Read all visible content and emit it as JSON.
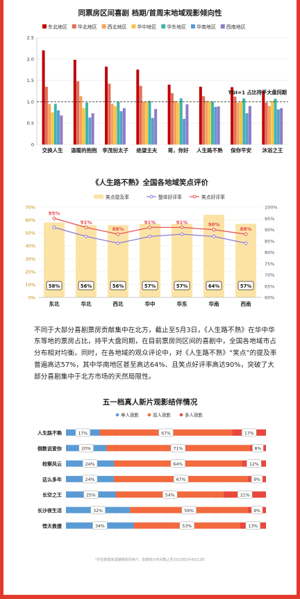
{
  "chart_data": [
    {
      "type": "bar",
      "title": "同票房区间喜剧 档期/首周末地域观影倾向性",
      "legend_position": "top",
      "series_names": [
        "东北地区",
        "华北地区",
        "西北地区",
        "华中地区",
        "华东地区",
        "华南地区",
        "西南地区"
      ],
      "colors": [
        "#c00000",
        "#e26d5a",
        "#f4a259",
        "#f7c548",
        "#3fb6a8",
        "#5b9bd5",
        "#8e7cc3"
      ],
      "categories": [
        "交换人生",
        "温暖的抱抱",
        "李茂扮太子",
        "绝望主夫",
        "哥，你好",
        "人生路不熟",
        "保你平安",
        "沐浴之王"
      ],
      "values": [
        [
          2.2,
          1.35,
          0.95,
          0.75,
          0.95,
          0.8,
          0.68
        ],
        [
          1.98,
          1.48,
          1.13,
          0.85,
          0.98,
          0.63,
          0.73
        ],
        [
          1.82,
          1.42,
          0.95,
          0.9,
          1.0,
          0.78,
          0.85
        ],
        [
          1.75,
          1.37,
          1.0,
          1.0,
          1.02,
          0.62,
          0.83
        ],
        [
          1.4,
          1.2,
          1.02,
          0.98,
          1.08,
          0.6,
          0.94
        ],
        [
          1.35,
          1.13,
          1.02,
          1.0,
          1.0,
          0.88,
          0.89
        ],
        [
          1.34,
          1.12,
          0.98,
          1.0,
          1.08,
          0.73,
          0.9
        ],
        [
          1.25,
          0.98,
          0.9,
          1.02,
          1.07,
          0.82,
          0.85
        ]
      ],
      "ylim": [
        0,
        2.5
      ],
      "yticks": [
        "0",
        "0.5",
        "1.0",
        "1.5",
        "2.0",
        "2.5"
      ],
      "reference_line": {
        "value": 1.0,
        "label": "TGI=1 占比持平大盘同期"
      }
    },
    {
      "type": "bar+line",
      "title": "《人生路不熟》全国各地域笑点评价",
      "categories": [
        "东北",
        "华北",
        "西北",
        "华中",
        "华东",
        "华南",
        "西南"
      ],
      "legend": [
        "笑点提及率",
        "整体好评率",
        "笑点好评率"
      ],
      "bar_series": {
        "name": "笑点提及率",
        "values": [
          58,
          56,
          56,
          57,
          57,
          64,
          57
        ],
        "labels": [
          "58%",
          "56%",
          "56%",
          "57%",
          "57%",
          "64%",
          "57%"
        ],
        "axis": "left",
        "color": "#fbe3a6"
      },
      "line_series": [
        {
          "name": "整体好评率",
          "values": [
            91,
            87,
            84,
            87,
            88,
            87,
            84
          ],
          "axis": "right",
          "color": "#8c7bd6"
        },
        {
          "name": "笑点好评率",
          "values": [
            95,
            91,
            88,
            91,
            91,
            90,
            88
          ],
          "labels": [
            "95%",
            "91%",
            "88%",
            "91%",
            "91%",
            "90%",
            "88%"
          ],
          "axis": "right",
          "color": "#e55050"
        }
      ],
      "left_ylim": [
        0,
        70
      ],
      "left_ticks": [
        "0%",
        "10%",
        "20%",
        "30%",
        "40%",
        "50%",
        "60%",
        "70%"
      ],
      "right_ylim": [
        60,
        100
      ],
      "right_ticks": [
        "60%",
        "65%",
        "70%",
        "75%",
        "80%",
        "85%",
        "90%",
        "95%",
        "100%"
      ]
    },
    {
      "type": "stacked_bar_horizontal",
      "title": "五一档真人新片观影结伴情况",
      "legend": [
        "单人观影",
        "双人观影",
        "多人观影"
      ],
      "colors": [
        "#5b9bd5",
        "#f26a3e",
        "#e8473e"
      ],
      "categories": [
        "人生路不熟",
        "倒数说爱你",
        "检察风云",
        "这么多年",
        "长空之王",
        "长沙夜生活",
        "悟天救援"
      ],
      "values": [
        [
          17,
          67,
          17
        ],
        [
          20,
          71,
          8
        ],
        [
          24,
          64,
          12
        ],
        [
          24,
          67,
          9
        ],
        [
          25,
          54,
          21
        ],
        [
          32,
          59,
          9
        ],
        [
          34,
          53,
          13
        ]
      ],
      "labels": [
        [
          "17%",
          "67%",
          "17%"
        ],
        [
          "20%",
          "71%",
          "8%"
        ],
        [
          "24%",
          "64%",
          "12%"
        ],
        [
          "24%",
          "67%",
          "9%"
        ],
        [
          "25%",
          "54%",
          "21%"
        ],
        [
          "32%",
          "59%",
          "9%"
        ],
        [
          "34%",
          "53%",
          "13%"
        ]
      ]
    }
  ],
  "paragraph": "不同于大部分喜剧票房贡献集中在北方，截止至5月3日，《人生路不熟》在华中华东等地的票房占比，持平大盘同期，在目前票房同区间的喜剧中，全国各地域市占分布相对均衡。同时，在各地域的观众评论中，对《人生路不熟》“笑点”的提及率普遍高达57%，其中华南地区甚至高达64%、且笑点好评率高达90%，突破了大部分喜剧集中于北方市场的天然局限性。",
  "footnote": "*评论数据来源猫眼购票用户，数据统计时间截止至2023年5月4日12时"
}
